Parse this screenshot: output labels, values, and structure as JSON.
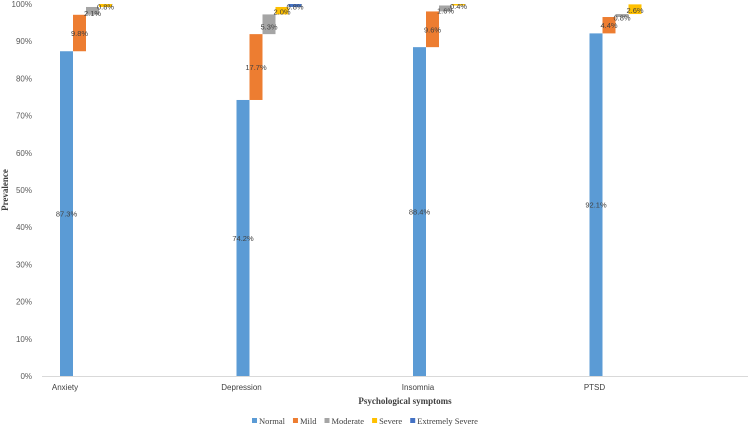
{
  "chart_data": {
    "type": "bar",
    "subtype": "waterfall-stacked",
    "categories": [
      "Anxiety",
      "Depression",
      "Insomnia",
      "PTSD"
    ],
    "series": [
      {
        "name": "Normal",
        "color": "#5B9BD5",
        "values": [
          87.3,
          74.2,
          88.4,
          92.1
        ],
        "labels": [
          "87.3%",
          "74.2%",
          "88.4%",
          "92.1%"
        ]
      },
      {
        "name": "Mild",
        "color": "#ED7D31",
        "values": [
          9.8,
          17.7,
          9.6,
          4.4
        ],
        "labels": [
          "9.8%",
          "17.7%",
          "9.6%",
          "4.4%"
        ]
      },
      {
        "name": "Moderate",
        "color": "#A5A5A5",
        "values": [
          2.1,
          5.3,
          1.6,
          0.8
        ],
        "labels": [
          "2.1%",
          "5.3%",
          "1.6%",
          "0.8%"
        ]
      },
      {
        "name": "Severe",
        "color": "#FFC000",
        "values": [
          0.8,
          2.0,
          0.4,
          2.6
        ],
        "labels": [
          "0.8%",
          "2.0%",
          "0.4%",
          "2.6%"
        ]
      },
      {
        "name": "Extremely Severe",
        "color": "#4472C4",
        "values": [
          0.0,
          0.8,
          0.0,
          0.0
        ],
        "labels": [
          "",
          "0.8%",
          "",
          ""
        ]
      }
    ],
    "xlabel": "Psychological symptoms",
    "ylabel": "Prevalence",
    "ylim": [
      0,
      100
    ],
    "yticks": [
      "0%",
      "10%",
      "20%",
      "30%",
      "40%",
      "50%",
      "60%",
      "70%",
      "80%",
      "90%",
      "100%"
    ],
    "grid": false,
    "legend_position": "bottom"
  }
}
